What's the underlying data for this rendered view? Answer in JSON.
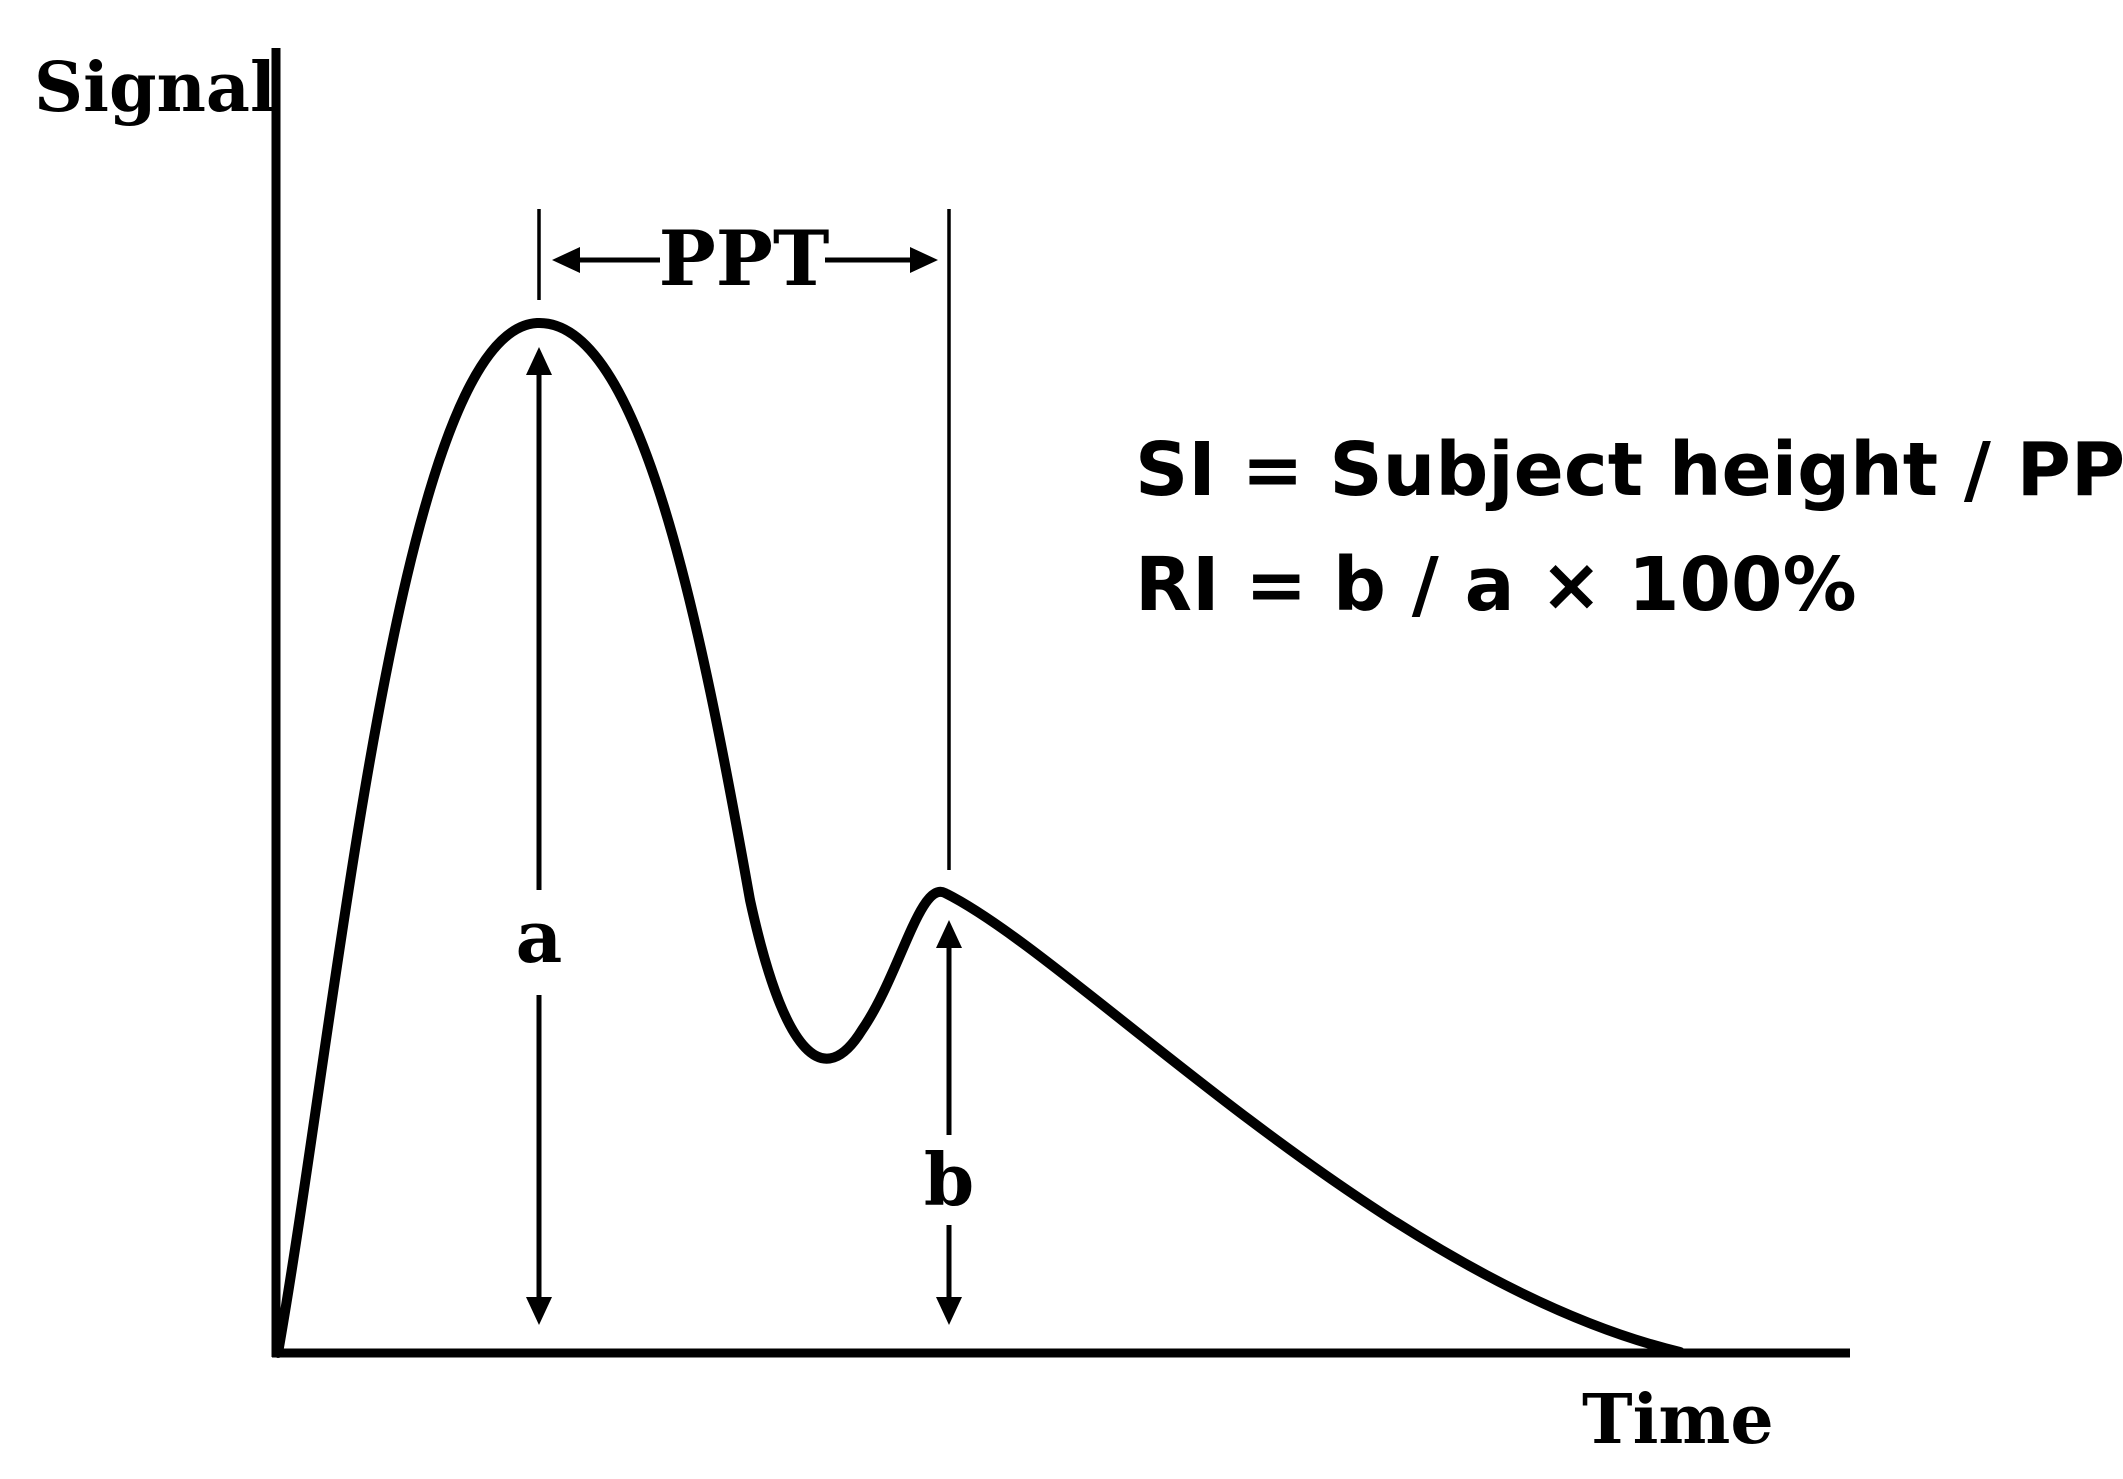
{
  "axes": {
    "y_label": "Signal",
    "x_label": "Time"
  },
  "annotations": {
    "interval_label": "PPT",
    "peak_a_label": "a",
    "peak_b_label": "b"
  },
  "formulas": [
    "SI = Subject height / PPT",
    "RI = b / a × 100%"
  ],
  "colors": {
    "line": "#000000",
    "background": "#ffffff"
  }
}
